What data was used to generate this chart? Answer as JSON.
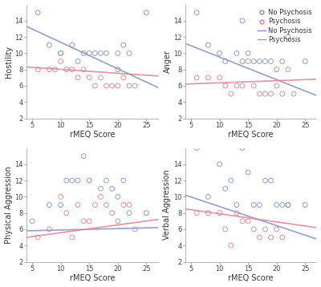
{
  "subplots": [
    {
      "ylabel": "Hostility",
      "xlabel": "rMEQ Score",
      "xlim": [
        4,
        27
      ],
      "ylim": [
        2,
        16
      ],
      "yticks": [
        2,
        4,
        6,
        8,
        10,
        12,
        14
      ],
      "xticks": [
        5,
        10,
        15,
        20,
        25
      ],
      "no_psychosis_x": [
        6,
        8,
        10,
        10,
        12,
        13,
        14,
        15,
        16,
        17,
        18,
        20,
        20,
        21,
        22,
        25
      ],
      "no_psychosis_y": [
        15,
        11,
        10,
        10,
        11,
        9,
        10,
        10,
        10,
        10,
        10,
        8,
        10,
        11,
        10,
        15
      ],
      "psychosis_x": [
        6,
        8,
        9,
        10,
        11,
        12,
        13,
        14,
        15,
        16,
        17,
        18,
        19,
        20,
        21,
        22,
        23
      ],
      "psychosis_y": [
        8,
        8,
        8,
        9,
        8,
        8,
        7,
        8,
        7,
        6,
        7,
        6,
        6,
        6,
        7,
        6,
        6
      ],
      "no_psych_line_x": [
        4,
        27
      ],
      "no_psych_line_y": [
        13.3,
        5.8
      ],
      "psych_line_x": [
        4,
        27
      ],
      "psych_line_y": [
        8.3,
        7.2
      ],
      "show_legend": false
    },
    {
      "ylabel": "Anger",
      "xlabel": "rMEQ Score",
      "xlim": [
        4,
        27
      ],
      "ylim": [
        2,
        16
      ],
      "yticks": [
        2,
        4,
        6,
        8,
        10,
        12,
        14
      ],
      "xticks": [
        5,
        10,
        15,
        20,
        25
      ],
      "no_psychosis_x": [
        6,
        8,
        10,
        11,
        13,
        14,
        14,
        15,
        16,
        17,
        18,
        19,
        20,
        21,
        22,
        25
      ],
      "no_psychosis_y": [
        15,
        11,
        10,
        9,
        10,
        14,
        9,
        10,
        9,
        9,
        9,
        9,
        8,
        9,
        12,
        9
      ],
      "psychosis_x": [
        6,
        8,
        10,
        11,
        12,
        13,
        14,
        15,
        16,
        17,
        18,
        19,
        20,
        21,
        22,
        23
      ],
      "psychosis_y": [
        7,
        7,
        7,
        6,
        5,
        6,
        6,
        9,
        6,
        5,
        5,
        5,
        6,
        5,
        8,
        5
      ],
      "no_psych_line_x": [
        4,
        27
      ],
      "no_psych_line_y": [
        11.2,
        4.8
      ],
      "psych_line_x": [
        4,
        27
      ],
      "psych_line_y": [
        6.2,
        6.8
      ],
      "show_legend": true
    },
    {
      "ylabel": "Physical Aggression",
      "xlabel": "rMEQ Score",
      "xlim": [
        4,
        27
      ],
      "ylim": [
        2,
        16
      ],
      "yticks": [
        2,
        4,
        6,
        8,
        10,
        12,
        14
      ],
      "xticks": [
        5,
        10,
        15,
        20,
        25
      ],
      "no_psychosis_x": [
        5,
        8,
        10,
        11,
        12,
        13,
        14,
        15,
        17,
        18,
        19,
        20,
        21,
        22,
        25
      ],
      "no_psychosis_y": [
        7,
        9,
        9,
        12,
        12,
        12,
        15,
        12,
        11,
        12,
        11,
        10,
        12,
        8,
        8
      ],
      "psychosis_x": [
        6,
        8,
        10,
        11,
        12,
        13,
        14,
        15,
        16,
        17,
        18,
        19,
        20,
        21,
        22,
        23
      ],
      "psychosis_y": [
        5,
        6,
        10,
        8,
        5,
        9,
        7,
        7,
        9,
        10,
        9,
        8,
        7,
        9,
        9,
        6
      ],
      "no_psych_line_x": [
        4,
        27
      ],
      "no_psych_line_y": [
        5.8,
        6.2
      ],
      "psych_line_x": [
        4,
        27
      ],
      "psych_line_y": [
        5.0,
        7.2
      ],
      "show_legend": false
    },
    {
      "ylabel": "Verbal Aggression",
      "xlabel": "rMEQ Score",
      "xlim": [
        4,
        27
      ],
      "ylim": [
        2,
        16
      ],
      "yticks": [
        2,
        4,
        6,
        8,
        10,
        12,
        14
      ],
      "xticks": [
        5,
        10,
        15,
        20,
        25
      ],
      "no_psychosis_x": [
        6,
        8,
        10,
        11,
        12,
        13,
        14,
        15,
        16,
        17,
        18,
        19,
        20,
        21,
        22,
        25
      ],
      "no_psychosis_y": [
        16,
        10,
        14,
        11,
        12,
        9,
        16,
        13,
        9,
        9,
        12,
        12,
        9,
        9,
        9,
        9
      ],
      "psychosis_x": [
        6,
        8,
        10,
        11,
        12,
        13,
        14,
        15,
        16,
        17,
        18,
        19,
        20,
        21,
        22
      ],
      "psychosis_y": [
        8,
        8,
        8,
        6,
        4,
        8,
        7,
        7,
        6,
        5,
        6,
        5,
        6,
        5,
        9
      ],
      "no_psych_line_x": [
        4,
        27
      ],
      "no_psych_line_y": [
        10.2,
        4.8
      ],
      "psych_line_x": [
        4,
        27
      ],
      "psych_line_y": [
        8.5,
        6.2
      ],
      "show_legend": false
    }
  ],
  "no_psych_color": "#8090c0",
  "psych_color": "#e08090",
  "no_psych_line_color": "#8090c0",
  "psych_line_color": "#e08090",
  "bg_color": "#ffffff",
  "marker_size": 18,
  "line_width": 1.2,
  "tick_fontsize": 6,
  "label_fontsize": 7,
  "legend_fontsize": 6,
  "spine_color": "#aaaaaa"
}
